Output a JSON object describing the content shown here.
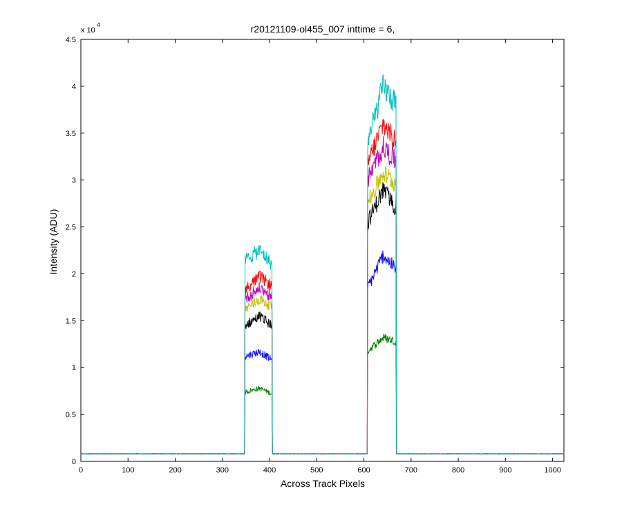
{
  "chart_data": {
    "type": "line",
    "title": "r20121109-ol455_007 inttime = 6,",
    "xlabel": "Across Track Pixels",
    "ylabel": "Intensity (ADU)",
    "y_exponent_label": "x 10",
    "y_exponent": "4",
    "xlim": [
      0,
      1024
    ],
    "ylim": [
      0,
      45000
    ],
    "x_ticks": [
      0,
      100,
      200,
      300,
      400,
      500,
      600,
      700,
      800,
      900,
      1000
    ],
    "x_tick_labels": [
      "0",
      "100",
      "200",
      "300",
      "400",
      "500",
      "600",
      "700",
      "800",
      "900",
      "1000"
    ],
    "y_ticks": [
      0,
      5000,
      10000,
      15000,
      20000,
      25000,
      30000,
      35000,
      40000,
      45000
    ],
    "y_tick_labels": [
      "0",
      "0.5",
      "1",
      "1.5",
      "2",
      "2.5",
      "3",
      "3.5",
      "4",
      "4.5"
    ],
    "grid": false,
    "legend": "none",
    "baseline": 800,
    "peaks": [
      {
        "x_start": 348,
        "x_end": 405
      },
      {
        "x_start": 608,
        "x_end": 668
      }
    ],
    "series": [
      {
        "color": "#008000",
        "peak1": [
          7400,
          7800,
          7200
        ],
        "peak2": [
          11800,
          13200,
          12800
        ]
      },
      {
        "color": "#0000ff",
        "peak1": [
          11200,
          11700,
          10800
        ],
        "peak2": [
          18500,
          22000,
          20500
        ]
      },
      {
        "color": "#000000",
        "peak1": [
          14500,
          15500,
          14500
        ],
        "peak2": [
          25500,
          29000,
          27000
        ]
      },
      {
        "color": "#bfbf00",
        "peak1": [
          16300,
          17300,
          16500
        ],
        "peak2": [
          27500,
          30800,
          29500
        ]
      },
      {
        "color": "#bf00bf",
        "peak1": [
          17300,
          18500,
          17500
        ],
        "peak2": [
          30000,
          33500,
          32000
        ]
      },
      {
        "color": "#ff0000",
        "peak1": [
          18300,
          19700,
          18700
        ],
        "peak2": [
          31800,
          36000,
          34000
        ]
      },
      {
        "color": "#00bfbf",
        "peak1": [
          21500,
          22500,
          21000
        ],
        "peak2": [
          34000,
          40000,
          38000
        ]
      }
    ]
  }
}
